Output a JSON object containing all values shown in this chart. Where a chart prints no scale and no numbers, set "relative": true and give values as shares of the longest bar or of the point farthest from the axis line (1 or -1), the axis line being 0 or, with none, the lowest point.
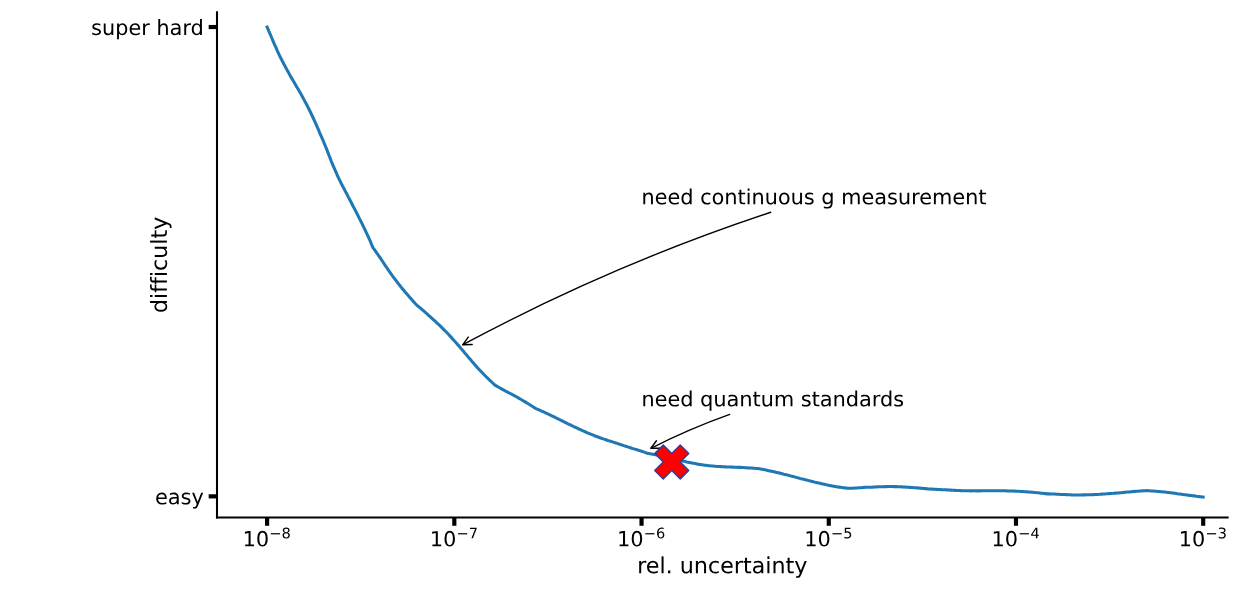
{
  "chart_data": {
    "type": "line",
    "xlabel": "rel. uncertainty",
    "ylabel": "difficulty",
    "log": "x",
    "xlim": [
      5.4e-09,
      0.00135
    ],
    "relative": true,
    "xticks": [
      {
        "value": 1e-08,
        "label": "10$^{−8}$"
      },
      {
        "value": 1e-07,
        "label": "10$^{−7}$"
      },
      {
        "value": 1e-06,
        "label": "10$^{−6}$"
      },
      {
        "value": 1e-05,
        "label": "10$^{−5}$"
      },
      {
        "value": 0.0001,
        "label": "10$^{−4}$"
      },
      {
        "value": 0.001,
        "label": "10$^{−3}$"
      }
    ],
    "grid": false,
    "legend": false,
    "series": [
      {
        "color": "#1f77b4",
        "x": [
          1e-08,
          1.29e-08,
          2.09e-08,
          3.63e-08,
          6.3e-08,
          1.03e-07,
          1.66e-07,
          2.69e-07,
          5.75e-07,
          1.07e-06,
          2e-06,
          4.17e-06,
          1.26e-05,
          4.27e-05,
          0.000148,
          0.0005,
          0.001
        ],
        "values": [
          1.0,
          0.914,
          0.751,
          0.549,
          0.434,
          0.353,
          0.271,
          0.22,
          0.168,
          0.128,
          0.111,
          0.097,
          0.061,
          0.059,
          0.047,
          0.052,
          0.043
        ]
      },
      {
        "type": "scatter",
        "color": "#ff0000",
        "marker": "cross",
        "x": [
          1.45e-06
        ],
        "values": [
          0.113
        ]
      }
    ],
    "annotations": [
      {
        "text": "need continuous g measurement",
        "x": 1.06e-07,
        "y": 0.348
      },
      {
        "text": "need quantum standards",
        "x": 1.07e-06,
        "y": 0.137
      },
      "easy",
      "super hard"
    ]
  }
}
